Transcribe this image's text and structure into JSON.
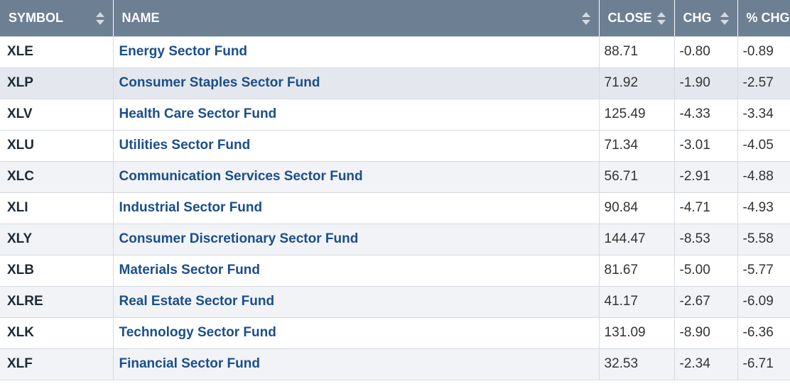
{
  "headers": {
    "symbol": "SYMBOL",
    "name": "NAME",
    "close": "CLOSE",
    "chg": "CHG",
    "pct_chg": "% CHG"
  },
  "rows": [
    {
      "symbol": "XLE",
      "name": "Energy Sector Fund",
      "close": "88.71",
      "chg": "-0.80",
      "pct_chg": "-0.89"
    },
    {
      "symbol": "XLP",
      "name": "Consumer Staples Sector Fund",
      "close": "71.92",
      "chg": "-1.90",
      "pct_chg": "-2.57"
    },
    {
      "symbol": "XLV",
      "name": "Health Care Sector Fund",
      "close": "125.49",
      "chg": "-4.33",
      "pct_chg": "-3.34"
    },
    {
      "symbol": "XLU",
      "name": "Utilities Sector Fund",
      "close": "71.34",
      "chg": "-3.01",
      "pct_chg": "-4.05"
    },
    {
      "symbol": "XLC",
      "name": "Communication Services Sector Fund",
      "close": "56.71",
      "chg": "-2.91",
      "pct_chg": "-4.88"
    },
    {
      "symbol": "XLI",
      "name": "Industrial Sector Fund",
      "close": "90.84",
      "chg": "-4.71",
      "pct_chg": "-4.93"
    },
    {
      "symbol": "XLY",
      "name": "Consumer Discretionary Sector Fund",
      "close": "144.47",
      "chg": "-8.53",
      "pct_chg": "-5.58"
    },
    {
      "symbol": "XLB",
      "name": "Materials Sector Fund",
      "close": "81.67",
      "chg": "-5.00",
      "pct_chg": "-5.77"
    },
    {
      "symbol": "XLRE",
      "name": "Real Estate Sector Fund",
      "close": "41.17",
      "chg": "-2.67",
      "pct_chg": "-6.09"
    },
    {
      "symbol": "XLK",
      "name": "Technology Sector Fund",
      "close": "131.09",
      "chg": "-8.90",
      "pct_chg": "-6.36"
    },
    {
      "symbol": "XLF",
      "name": "Financial Sector Fund",
      "close": "32.53",
      "chg": "-2.34",
      "pct_chg": "-6.71"
    }
  ],
  "colors": {
    "header_bg": "#6d7f93",
    "link": "#1a4e8c",
    "row_alt": "#f1f3f6",
    "row_hover": "#e4e8ee"
  }
}
